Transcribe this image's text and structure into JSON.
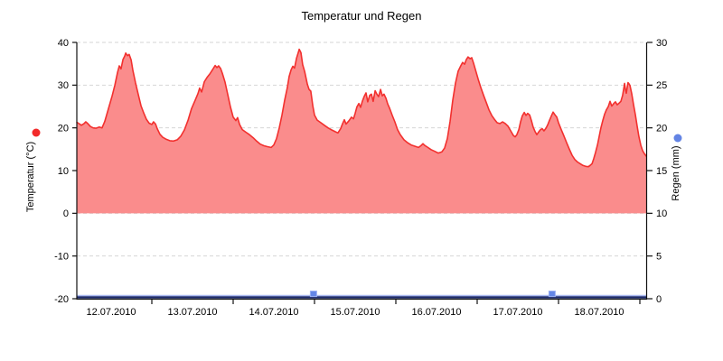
{
  "chart_data": {
    "type": "area",
    "title": "Temperatur und Regen",
    "grid": "horizontal-dashed",
    "x_axis": {
      "dates": [
        "12.07.2010",
        "13.07.2010",
        "14.07.2010",
        "15.07.2010",
        "16.07.2010",
        "17.07.2010",
        "18.07.2010"
      ],
      "label_hours": [
        12,
        36,
        60,
        84,
        108,
        132,
        156
      ],
      "boundary_hours": [
        24,
        48,
        72,
        96,
        120,
        144,
        168
      ],
      "hours_range": [
        1.9,
        169.9
      ]
    },
    "y_left": {
      "title": "Temperatur (°C)",
      "ticks": [
        40,
        30,
        20,
        10,
        0,
        -10,
        -20
      ],
      "tick_labels": [
        "40",
        "30",
        "20",
        "10",
        "0",
        "-10",
        "-20"
      ],
      "range": [
        -20,
        40
      ],
      "color": "#f22a2a"
    },
    "y_right": {
      "title": "Regen (mm)",
      "ticks": [
        30,
        25,
        20,
        15,
        10,
        5,
        0
      ],
      "tick_labels": [
        "30",
        "25",
        "20",
        "15",
        "10",
        "5",
        "0"
      ],
      "range": [
        0,
        30
      ],
      "color": "#6384e4"
    },
    "series": [
      {
        "name": "Temperatur",
        "type": "area",
        "line_color": "#f2302e",
        "fill_color": "#fa8c8c",
        "points": [
          [
            1.9,
            21.3
          ],
          [
            2.7,
            20.9
          ],
          [
            3.2,
            20.6
          ],
          [
            4.0,
            21.0
          ],
          [
            4.5,
            21.4
          ],
          [
            5.1,
            21.0
          ],
          [
            5.9,
            20.3
          ],
          [
            6.7,
            20.0
          ],
          [
            7.5,
            19.9
          ],
          [
            8.5,
            20.2
          ],
          [
            9.3,
            20.0
          ],
          [
            10.1,
            21.5
          ],
          [
            11.2,
            24.5
          ],
          [
            12.3,
            27.5
          ],
          [
            13.1,
            30.0
          ],
          [
            13.9,
            33.0
          ],
          [
            14.4,
            34.5
          ],
          [
            14.9,
            33.8
          ],
          [
            15.5,
            36.0
          ],
          [
            16.0,
            36.8
          ],
          [
            16.3,
            37.5
          ],
          [
            16.8,
            36.9
          ],
          [
            17.3,
            37.2
          ],
          [
            17.9,
            35.9
          ],
          [
            18.4,
            33.5
          ],
          [
            19.2,
            30.5
          ],
          [
            20.0,
            27.8
          ],
          [
            20.8,
            25.2
          ],
          [
            21.6,
            23.5
          ],
          [
            22.4,
            22.0
          ],
          [
            23.2,
            21.1
          ],
          [
            24.0,
            20.8
          ],
          [
            24.5,
            21.4
          ],
          [
            25.1,
            20.9
          ],
          [
            25.6,
            19.8
          ],
          [
            26.4,
            18.5
          ],
          [
            27.2,
            17.8
          ],
          [
            28.3,
            17.3
          ],
          [
            29.3,
            17.0
          ],
          [
            30.4,
            16.9
          ],
          [
            31.5,
            17.2
          ],
          [
            32.5,
            18.0
          ],
          [
            33.6,
            19.5
          ],
          [
            34.7,
            21.8
          ],
          [
            35.7,
            24.5
          ],
          [
            36.8,
            26.5
          ],
          [
            37.6,
            28.0
          ],
          [
            38.1,
            29.3
          ],
          [
            38.7,
            28.4
          ],
          [
            39.5,
            30.8
          ],
          [
            40.3,
            31.8
          ],
          [
            41.1,
            32.6
          ],
          [
            41.9,
            33.6
          ],
          [
            42.7,
            34.6
          ],
          [
            43.2,
            34.1
          ],
          [
            43.7,
            34.5
          ],
          [
            44.3,
            33.9
          ],
          [
            44.8,
            32.8
          ],
          [
            45.6,
            30.7
          ],
          [
            46.4,
            27.8
          ],
          [
            47.2,
            24.9
          ],
          [
            48.0,
            22.5
          ],
          [
            48.8,
            21.7
          ],
          [
            49.3,
            22.4
          ],
          [
            49.9,
            20.8
          ],
          [
            50.7,
            19.6
          ],
          [
            51.7,
            19.0
          ],
          [
            52.8,
            18.4
          ],
          [
            53.9,
            17.7
          ],
          [
            54.9,
            16.9
          ],
          [
            56.0,
            16.2
          ],
          [
            57.1,
            15.8
          ],
          [
            58.1,
            15.6
          ],
          [
            59.2,
            15.4
          ],
          [
            60.0,
            16.0
          ],
          [
            60.8,
            17.5
          ],
          [
            61.6,
            20.0
          ],
          [
            62.4,
            23.0
          ],
          [
            63.2,
            26.5
          ],
          [
            64.0,
            29.5
          ],
          [
            64.5,
            32.0
          ],
          [
            65.1,
            33.6
          ],
          [
            65.6,
            34.4
          ],
          [
            66.1,
            34.0
          ],
          [
            66.7,
            36.3
          ],
          [
            67.2,
            37.6
          ],
          [
            67.5,
            38.4
          ],
          [
            68.0,
            37.6
          ],
          [
            68.5,
            34.8
          ],
          [
            69.1,
            33.2
          ],
          [
            69.9,
            30.2
          ],
          [
            70.4,
            29.0
          ],
          [
            70.9,
            28.6
          ],
          [
            71.5,
            25.2
          ],
          [
            72.0,
            23.0
          ],
          [
            72.8,
            21.8
          ],
          [
            73.9,
            21.2
          ],
          [
            74.9,
            20.6
          ],
          [
            76.0,
            20.0
          ],
          [
            77.1,
            19.5
          ],
          [
            78.1,
            19.1
          ],
          [
            78.9,
            18.8
          ],
          [
            79.7,
            19.8
          ],
          [
            80.3,
            21.0
          ],
          [
            80.8,
            21.9
          ],
          [
            81.3,
            20.9
          ],
          [
            82.1,
            21.6
          ],
          [
            82.9,
            22.5
          ],
          [
            83.5,
            22.1
          ],
          [
            84.0,
            23.4
          ],
          [
            84.5,
            24.9
          ],
          [
            85.1,
            25.7
          ],
          [
            85.6,
            24.8
          ],
          [
            86.1,
            26.2
          ],
          [
            86.7,
            27.4
          ],
          [
            87.2,
            28.2
          ],
          [
            87.7,
            26.1
          ],
          [
            88.3,
            27.6
          ],
          [
            88.8,
            27.9
          ],
          [
            89.3,
            26.2
          ],
          [
            89.9,
            28.7
          ],
          [
            90.4,
            27.9
          ],
          [
            90.9,
            27.3
          ],
          [
            91.5,
            29.0
          ],
          [
            92.0,
            27.5
          ],
          [
            92.5,
            27.9
          ],
          [
            93.1,
            26.9
          ],
          [
            93.6,
            25.6
          ],
          [
            94.1,
            24.7
          ],
          [
            94.9,
            23.0
          ],
          [
            95.7,
            21.4
          ],
          [
            96.5,
            19.6
          ],
          [
            97.3,
            18.4
          ],
          [
            98.4,
            17.2
          ],
          [
            99.5,
            16.5
          ],
          [
            100.5,
            16.0
          ],
          [
            101.6,
            15.7
          ],
          [
            102.7,
            15.4
          ],
          [
            103.5,
            15.9
          ],
          [
            104.0,
            16.3
          ],
          [
            104.5,
            15.9
          ],
          [
            105.3,
            15.5
          ],
          [
            106.4,
            14.9
          ],
          [
            107.5,
            14.5
          ],
          [
            108.5,
            14.1
          ],
          [
            109.6,
            14.4
          ],
          [
            110.4,
            15.3
          ],
          [
            111.2,
            17.5
          ],
          [
            112.0,
            21.5
          ],
          [
            112.8,
            26.5
          ],
          [
            113.6,
            30.5
          ],
          [
            114.4,
            33.3
          ],
          [
            115.2,
            34.6
          ],
          [
            115.7,
            35.3
          ],
          [
            116.3,
            34.9
          ],
          [
            116.8,
            36.0
          ],
          [
            117.3,
            36.6
          ],
          [
            117.9,
            36.2
          ],
          [
            118.4,
            36.4
          ],
          [
            118.9,
            35.2
          ],
          [
            119.5,
            33.6
          ],
          [
            120.3,
            31.4
          ],
          [
            121.1,
            29.4
          ],
          [
            121.9,
            27.6
          ],
          [
            122.7,
            25.9
          ],
          [
            123.5,
            24.2
          ],
          [
            124.3,
            22.9
          ],
          [
            125.1,
            22.0
          ],
          [
            125.9,
            21.2
          ],
          [
            126.7,
            21.0
          ],
          [
            127.5,
            21.4
          ],
          [
            128.3,
            21.0
          ],
          [
            129.1,
            20.4
          ],
          [
            129.9,
            19.3
          ],
          [
            130.7,
            18.2
          ],
          [
            131.2,
            17.9
          ],
          [
            131.7,
            18.4
          ],
          [
            132.3,
            19.6
          ],
          [
            132.8,
            21.4
          ],
          [
            133.3,
            22.8
          ],
          [
            133.9,
            23.6
          ],
          [
            134.4,
            22.9
          ],
          [
            134.9,
            23.4
          ],
          [
            135.5,
            23.0
          ],
          [
            136.0,
            21.7
          ],
          [
            136.5,
            20.2
          ],
          [
            137.1,
            19.1
          ],
          [
            137.6,
            18.4
          ],
          [
            138.1,
            19.0
          ],
          [
            138.7,
            19.6
          ],
          [
            139.2,
            19.8
          ],
          [
            139.7,
            19.3
          ],
          [
            140.3,
            19.9
          ],
          [
            140.8,
            20.7
          ],
          [
            141.3,
            21.7
          ],
          [
            141.9,
            22.8
          ],
          [
            142.4,
            23.7
          ],
          [
            142.9,
            23.1
          ],
          [
            143.5,
            22.5
          ],
          [
            144.0,
            21.2
          ],
          [
            144.8,
            19.6
          ],
          [
            145.6,
            18.1
          ],
          [
            146.4,
            16.5
          ],
          [
            147.2,
            15.0
          ],
          [
            148.0,
            13.6
          ],
          [
            148.8,
            12.6
          ],
          [
            149.6,
            12.0
          ],
          [
            150.4,
            11.6
          ],
          [
            151.2,
            11.2
          ],
          [
            152.0,
            11.0
          ],
          [
            152.8,
            10.9
          ],
          [
            153.3,
            11.2
          ],
          [
            153.9,
            11.6
          ],
          [
            154.4,
            12.8
          ],
          [
            154.9,
            14.2
          ],
          [
            155.5,
            16.0
          ],
          [
            156.0,
            18.0
          ],
          [
            156.5,
            20.0
          ],
          [
            157.1,
            21.8
          ],
          [
            157.6,
            23.2
          ],
          [
            158.1,
            24.2
          ],
          [
            158.7,
            25.0
          ],
          [
            159.2,
            26.2
          ],
          [
            159.7,
            25.1
          ],
          [
            160.3,
            25.7
          ],
          [
            160.8,
            26.1
          ],
          [
            161.3,
            25.4
          ],
          [
            161.9,
            25.8
          ],
          [
            162.4,
            26.2
          ],
          [
            162.9,
            27.6
          ],
          [
            163.2,
            29.0
          ],
          [
            163.5,
            30.4
          ],
          [
            163.7,
            29.2
          ],
          [
            164.0,
            28.1
          ],
          [
            164.3,
            29.6
          ],
          [
            164.5,
            30.6
          ],
          [
            164.8,
            30.3
          ],
          [
            165.1,
            29.9
          ],
          [
            165.6,
            28.0
          ],
          [
            166.1,
            25.6
          ],
          [
            166.7,
            23.0
          ],
          [
            167.2,
            20.4
          ],
          [
            167.7,
            18.0
          ],
          [
            168.3,
            15.9
          ],
          [
            168.8,
            14.7
          ],
          [
            169.3,
            14.0
          ],
          [
            169.9,
            13.4
          ]
        ]
      },
      {
        "name": "Regen",
        "type": "bar",
        "bar_color": "#6486e6",
        "bar_border": "#9cb0f2",
        "baseline_dark": "#1b2a6e",
        "baseline_light": "#aab9f0",
        "points": [
          [
            71.7,
            0.9
          ],
          [
            142.1,
            0.9
          ]
        ]
      }
    ]
  }
}
